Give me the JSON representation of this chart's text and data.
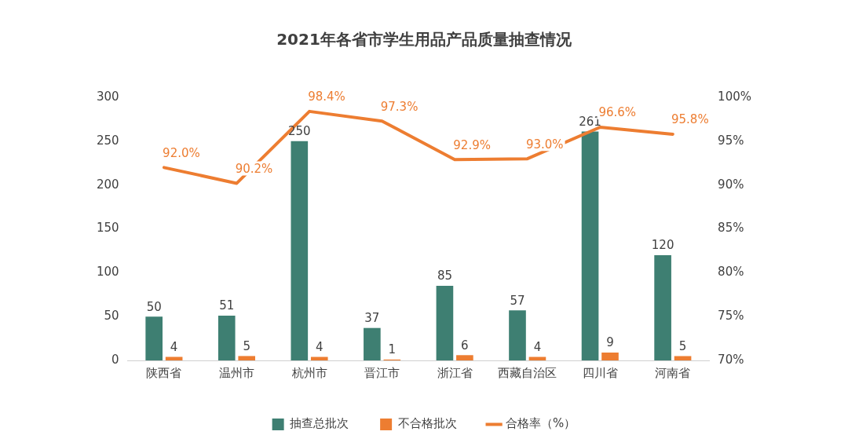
{
  "chart_data": {
    "type": "bar",
    "title": "2021年各省市学生用品产品质量抽查情况",
    "categories": [
      "陕西省",
      "温州市",
      "杭州市",
      "晋江市",
      "浙江省",
      "西藏自治区",
      "四川省",
      "河南省"
    ],
    "series": [
      {
        "name": "抽查总批次",
        "color": "#3e7f72",
        "values": [
          50,
          51,
          250,
          37,
          85,
          57,
          261,
          120
        ],
        "value_labels": [
          "50",
          "51",
          "250",
          "37",
          "85",
          "57",
          "261",
          "120"
        ]
      },
      {
        "name": "不合格批次",
        "color": "#ed7d31",
        "values": [
          4,
          5,
          4,
          1,
          6,
          4,
          9,
          5
        ],
        "value_labels": [
          "4",
          "5",
          "4",
          "1",
          "6",
          "4",
          "9",
          "5"
        ]
      },
      {
        "name": "合格率（%）",
        "type": "line",
        "axis": "y2",
        "color": "#ed7d31",
        "values": [
          92.0,
          90.2,
          98.4,
          97.3,
          92.9,
          93.0,
          96.6,
          95.8
        ],
        "value_labels": [
          "92.0%",
          "90.2%",
          "98.4%",
          "97.3%",
          "92.9%",
          "93.0%",
          "96.6%",
          "95.8%"
        ]
      }
    ],
    "ylim": [
      0,
      300
    ],
    "yticks": [
      0,
      50,
      100,
      150,
      200,
      250,
      300
    ],
    "y2lim": [
      70,
      100
    ],
    "y2ticks": [
      {
        "value": 70,
        "label": "70%"
      },
      {
        "value": 75,
        "label": "75%"
      },
      {
        "value": 80,
        "label": "80%"
      },
      {
        "value": 85,
        "label": "85%"
      },
      {
        "value": 90,
        "label": "90%"
      },
      {
        "value": 95,
        "label": "95%"
      },
      {
        "value": 100,
        "label": "100%"
      }
    ],
    "grid": false,
    "legend": "bottom",
    "marker": "none",
    "line_style": "solid"
  }
}
